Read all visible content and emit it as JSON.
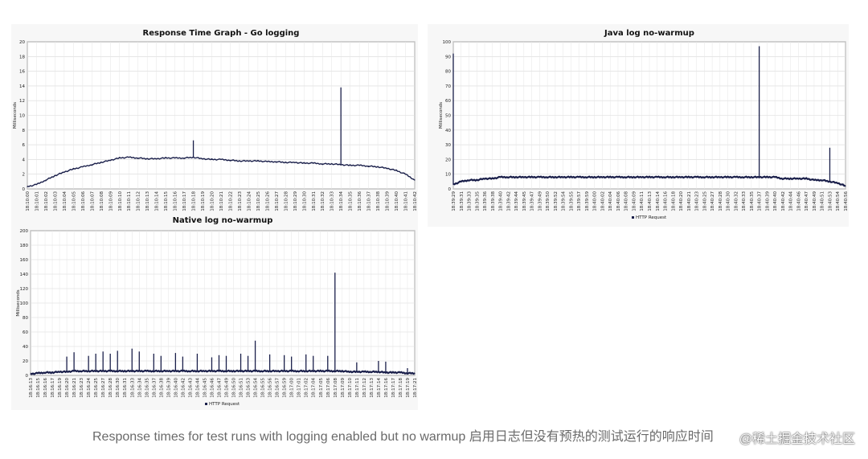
{
  "caption": "Response times for test runs with logging enabled but no warmup 启用日志但没有预热的测试运行的响应时间",
  "watermark": "@稀土掘金技术社区",
  "chart_data": [
    {
      "type": "line",
      "title": "Response Time Graph - Go logging",
      "ylabel": "Milliseconds",
      "ylim": [
        0,
        20
      ],
      "yticks": [
        0,
        2,
        4,
        6,
        8,
        10,
        12,
        14,
        16,
        18,
        20
      ],
      "grid": true,
      "legend": "",
      "categories": [
        "18:10:00",
        "18:10:01",
        "18:10:02",
        "18:10:03",
        "18:10:04",
        "18:10:05",
        "18:10:06",
        "18:10:07",
        "18:10:08",
        "18:10:09",
        "18:10:10",
        "18:10:11",
        "18:10:12",
        "18:10:13",
        "18:10:14",
        "18:10:15",
        "18:10:16",
        "18:10:17",
        "18:10:18",
        "18:10:19",
        "18:10:20",
        "18:10:21",
        "18:10:22",
        "18:10:23",
        "18:10:24",
        "18:10:25",
        "18:10:26",
        "18:10:27",
        "18:10:28",
        "18:10:29",
        "18:10:30",
        "18:10:31",
        "18:10:32",
        "18:10:33",
        "18:10:34",
        "18:10:35",
        "18:10:36",
        "18:10:37",
        "18:10:38",
        "18:10:39",
        "18:10:40",
        "18:10:41",
        "18:10:42"
      ],
      "series": [
        {
          "values": [
            0.3,
            0.6,
            1.2,
            1.8,
            2.3,
            2.7,
            3.0,
            3.3,
            3.6,
            3.9,
            4.2,
            4.3,
            4.2,
            4.1,
            4.1,
            4.2,
            4.2,
            4.2,
            4.3,
            4.1,
            4.0,
            4.0,
            3.9,
            3.8,
            3.8,
            3.8,
            3.7,
            3.7,
            3.6,
            3.6,
            3.5,
            3.5,
            3.4,
            3.4,
            3.3,
            3.2,
            3.2,
            3.1,
            3.0,
            2.8,
            2.5,
            2.0,
            1.2
          ],
          "spikes": [
            [
              "18:10:18",
              6.6
            ],
            [
              "18:10:34",
              13.8
            ]
          ]
        }
      ]
    },
    {
      "type": "line",
      "title": "Java log no-warmup",
      "ylabel": "Milliseconds",
      "ylim": [
        0,
        100
      ],
      "yticks": [
        0,
        10,
        20,
        30,
        40,
        50,
        60,
        70,
        80,
        90,
        100
      ],
      "grid": true,
      "legend": "bottom-center",
      "categories": [
        "18:39:29",
        "18:39:31",
        "18:39:33",
        "18:39:35",
        "18:39:36",
        "18:39:38",
        "18:39:40",
        "18:39:42",
        "18:39:44",
        "18:39:45",
        "18:39:47",
        "18:39:49",
        "18:39:50",
        "18:39:52",
        "18:39:54",
        "18:39:55",
        "18:39:57",
        "18:39:59",
        "18:40:00",
        "18:40:02",
        "18:40:04",
        "18:40:06",
        "18:40:08",
        "18:40:09",
        "18:40:11",
        "18:40:13",
        "18:40:14",
        "18:40:16",
        "18:40:18",
        "18:40:20",
        "18:40:21",
        "18:40:23",
        "18:40:25",
        "18:40:27",
        "18:40:28",
        "18:40:30",
        "18:40:32",
        "18:40:33",
        "18:40:35",
        "18:40:37",
        "18:40:39",
        "18:40:40",
        "18:40:42",
        "18:40:44",
        "18:40:46",
        "18:40:47",
        "18:40:49",
        "18:40:51",
        "18:40:53",
        "18:40:54",
        "18:40:56"
      ],
      "series": [
        {
          "name": "HTTP Request",
          "values": [
            3,
            5,
            6,
            6,
            7,
            7,
            8,
            8,
            8,
            8,
            8,
            8,
            8,
            8,
            8,
            8,
            8,
            8,
            8,
            8,
            8,
            8,
            8,
            8,
            8,
            8,
            8,
            8,
            8,
            8,
            8,
            8,
            8,
            8,
            8,
            8,
            8,
            8,
            8,
            8,
            8,
            8,
            7,
            7,
            7,
            7,
            6,
            6,
            5,
            4,
            2
          ],
          "spikes": [
            [
              "18:39:29",
              92
            ],
            [
              "18:40:37",
              97
            ],
            [
              "18:40:53",
              28
            ]
          ]
        }
      ]
    },
    {
      "type": "line",
      "title": "Native log no-warmup",
      "ylabel": "Milliseconds",
      "ylim": [
        0,
        200
      ],
      "yticks": [
        0,
        20,
        40,
        60,
        80,
        100,
        120,
        140,
        160,
        180,
        200
      ],
      "grid": true,
      "legend": "bottom-center",
      "categories": [
        "18:16:13",
        "18:16:15",
        "18:16:16",
        "18:16:17",
        "18:16:19",
        "18:16:20",
        "18:16:21",
        "18:16:23",
        "18:16:24",
        "18:16:25",
        "18:16:27",
        "18:16:28",
        "18:16:30",
        "18:16:31",
        "18:16:33",
        "18:16:34",
        "18:16:35",
        "18:16:37",
        "18:16:38",
        "18:16:39",
        "18:16:40",
        "18:16:42",
        "18:16:43",
        "18:16:44",
        "18:16:45",
        "18:16:46",
        "18:16:47",
        "18:16:49",
        "18:16:50",
        "18:16:51",
        "18:16:53",
        "18:16:54",
        "18:16:55",
        "18:16:56",
        "18:16:57",
        "18:16:59",
        "18:17:00",
        "18:17:01",
        "18:17:02",
        "18:17:04",
        "18:17:05",
        "18:17:06",
        "18:17:08",
        "18:17:09",
        "18:17:10",
        "18:17:11",
        "18:17:12",
        "18:17:13",
        "18:17:14",
        "18:17:16",
        "18:17:17",
        "18:17:18",
        "18:17:19",
        "18:17:21"
      ],
      "series": [
        {
          "name": "HTTP Request",
          "values": [
            2,
            3,
            4,
            4,
            5,
            5,
            6,
            6,
            6,
            6,
            6,
            6,
            6,
            6,
            6,
            6,
            6,
            6,
            6,
            6,
            6,
            6,
            6,
            6,
            6,
            6,
            6,
            6,
            6,
            6,
            6,
            6,
            6,
            6,
            6,
            6,
            6,
            6,
            6,
            6,
            6,
            6,
            6,
            6,
            5,
            5,
            5,
            5,
            5,
            4,
            4,
            4,
            3,
            3
          ],
          "spikes": [
            [
              "18:16:20",
              26
            ],
            [
              "18:16:21",
              32
            ],
            [
              "18:16:24",
              27
            ],
            [
              "18:16:25",
              30
            ],
            [
              "18:16:27",
              33
            ],
            [
              "18:16:28",
              30
            ],
            [
              "18:16:30",
              34
            ],
            [
              "18:16:33",
              37
            ],
            [
              "18:16:34",
              33
            ],
            [
              "18:16:37",
              30
            ],
            [
              "18:16:38",
              27
            ],
            [
              "18:16:40",
              31
            ],
            [
              "18:16:42",
              26
            ],
            [
              "18:16:44",
              30
            ],
            [
              "18:16:46",
              25
            ],
            [
              "18:16:47",
              28
            ],
            [
              "18:16:49",
              27
            ],
            [
              "18:16:51",
              30
            ],
            [
              "18:16:53",
              27
            ],
            [
              "18:16:54",
              48
            ],
            [
              "18:16:56",
              29
            ],
            [
              "18:16:59",
              28
            ],
            [
              "18:17:00",
              26
            ],
            [
              "18:17:02",
              29
            ],
            [
              "18:17:04",
              27
            ],
            [
              "18:17:06",
              27
            ],
            [
              "18:17:08",
              142
            ],
            [
              "18:17:11",
              18
            ],
            [
              "18:17:14",
              20
            ],
            [
              "18:17:16",
              19
            ],
            [
              "18:17:19",
              10
            ]
          ]
        }
      ]
    }
  ]
}
